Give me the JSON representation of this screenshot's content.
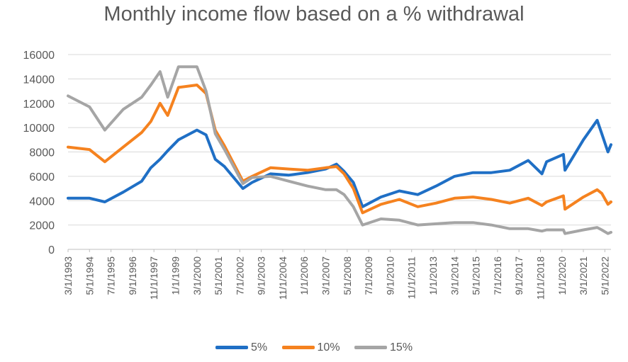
{
  "chart_data": {
    "type": "line",
    "title": "Monthly income flow based on a % withdrawal",
    "xlabel": "",
    "ylabel": "",
    "ylim": [
      0,
      16000
    ],
    "yticks": [
      0,
      2000,
      4000,
      6000,
      8000,
      10000,
      12000,
      14000,
      16000
    ],
    "grid": "horizontal",
    "legend_position": "bottom",
    "xtick_labels": [
      "3/1/1993",
      "5/1/1994",
      "7/1/1995",
      "9/1/1996",
      "11/1/1997",
      "1/1/1999",
      "3/1/2000",
      "5/1/2001",
      "7/1/2002",
      "9/1/2003",
      "11/1/2004",
      "1/1/2006",
      "3/1/2007",
      "5/1/2008",
      "7/1/2009",
      "9/1/2010",
      "11/1/2011",
      "1/1/2013",
      "3/1/2014",
      "5/1/2015",
      "7/1/2016",
      "9/1/2017",
      "11/1/2018",
      "1/1/2020",
      "3/1/2021",
      "5/1/2022"
    ],
    "x": [
      "3/1/1993",
      "5/1/1994",
      "3/1/1995",
      "3/1/1996",
      "3/1/1997",
      "9/1/1997",
      "3/1/1998",
      "8/1/1998",
      "3/1/1999",
      "3/1/2000",
      "9/1/2000",
      "3/1/2001",
      "9/1/2001",
      "9/1/2002",
      "3/1/2003",
      "3/1/2004",
      "3/1/2005",
      "3/1/2006",
      "3/1/2007",
      "10/1/2007",
      "3/1/2008",
      "9/1/2008",
      "3/1/2009",
      "3/1/2010",
      "3/1/2011",
      "3/1/2012",
      "3/1/2013",
      "3/1/2014",
      "3/1/2015",
      "3/1/2016",
      "3/1/2017",
      "3/1/2018",
      "12/1/2018",
      "3/1/2019",
      "2/1/2020",
      "3/1/2020",
      "3/1/2021",
      "12/1/2021",
      "3/1/2022",
      "7/1/2022",
      "9/1/2022"
    ],
    "series": [
      {
        "name": "5%",
        "color": "#1f6fc5",
        "values": [
          4200,
          4200,
          3900,
          4700,
          5600,
          6700,
          7400,
          8100,
          9000,
          9800,
          9400,
          7400,
          6800,
          5000,
          5500,
          6200,
          6100,
          6300,
          6600,
          7000,
          6400,
          5500,
          3500,
          4300,
          4800,
          4500,
          5200,
          6000,
          6300,
          6300,
          6500,
          7300,
          6200,
          7200,
          7800,
          6500,
          9000,
          10600,
          9500,
          8000,
          8600
        ]
      },
      {
        "name": "10%",
        "color": "#f5821f",
        "values": [
          8400,
          8200,
          7200,
          8400,
          9600,
          10500,
          12000,
          11000,
          13300,
          13500,
          12800,
          9800,
          8500,
          5600,
          6000,
          6700,
          6600,
          6500,
          6700,
          6800,
          6200,
          5000,
          3000,
          3700,
          4100,
          3500,
          3800,
          4200,
          4300,
          4100,
          3800,
          4200,
          3600,
          3900,
          4400,
          3300,
          4300,
          4900,
          4600,
          3700,
          3900
        ]
      },
      {
        "name": "15%",
        "color": "#a5a5a5",
        "values": [
          12600,
          11700,
          9800,
          11500,
          12500,
          13500,
          14600,
          12500,
          15000,
          15000,
          13000,
          9500,
          8200,
          5400,
          5900,
          6000,
          5600,
          5200,
          4900,
          4900,
          4500,
          3500,
          2000,
          2500,
          2400,
          2000,
          2100,
          2200,
          2200,
          2000,
          1700,
          1700,
          1500,
          1600,
          1600,
          1300,
          1600,
          1800,
          1600,
          1300,
          1400
        ]
      }
    ]
  }
}
